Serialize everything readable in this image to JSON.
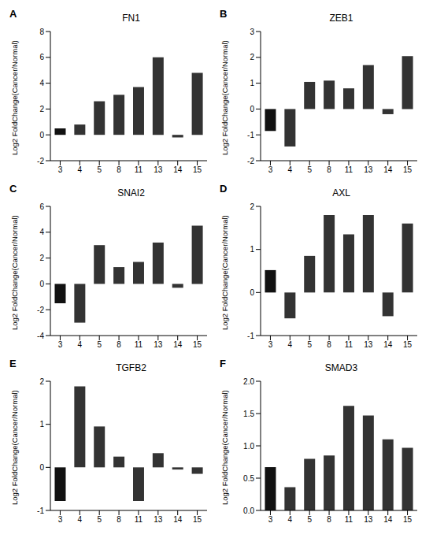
{
  "chart_data": [
    {
      "type": "bar",
      "panel_label": "A",
      "title": "FN1",
      "y_label": "Log2 FoldChange(Cancer/Normal)",
      "categories": [
        "3",
        "4",
        "5",
        "8",
        "11",
        "13",
        "14",
        "15"
      ],
      "values": [
        0.5,
        0.8,
        2.6,
        3.1,
        3.7,
        6.0,
        -0.2,
        4.8
      ],
      "colors": [
        "#111111",
        "#333333",
        "#333333",
        "#333333",
        "#333333",
        "#333333",
        "#333333",
        "#333333"
      ],
      "ylim": [
        -2,
        8
      ],
      "yticks": [
        -2,
        0,
        2,
        4,
        6,
        8
      ],
      "grid": false
    },
    {
      "type": "bar",
      "panel_label": "B",
      "title": "ZEB1",
      "y_label": "Log2 FoldChange(Cancer/Normal)",
      "categories": [
        "3",
        "4",
        "5",
        "8",
        "11",
        "13",
        "14",
        "15"
      ],
      "values": [
        -0.85,
        -1.45,
        1.05,
        1.1,
        0.8,
        1.7,
        -0.2,
        2.05
      ],
      "colors": [
        "#111111",
        "#333333",
        "#333333",
        "#333333",
        "#333333",
        "#333333",
        "#333333",
        "#333333"
      ],
      "ylim": [
        -2,
        3
      ],
      "yticks": [
        -2,
        -1,
        0,
        1,
        2,
        3
      ],
      "grid": false
    },
    {
      "type": "bar",
      "panel_label": "C",
      "title": "SNAI2",
      "y_label": "Log2 FoldChange(Cancer/Normal)",
      "categories": [
        "3",
        "4",
        "5",
        "8",
        "11",
        "13",
        "14",
        "15"
      ],
      "values": [
        -1.5,
        -3.0,
        3.0,
        1.3,
        1.7,
        3.2,
        -0.3,
        4.5
      ],
      "colors": [
        "#111111",
        "#333333",
        "#333333",
        "#333333",
        "#333333",
        "#333333",
        "#333333",
        "#333333"
      ],
      "ylim": [
        -4,
        6
      ],
      "yticks": [
        -4,
        -2,
        0,
        2,
        4,
        6
      ],
      "grid": false
    },
    {
      "type": "bar",
      "panel_label": "D",
      "title": "AXL",
      "y_label": "Log2 FoldChange(Cancer/Normal)",
      "categories": [
        "3",
        "4",
        "5",
        "8",
        "11",
        "13",
        "14",
        "15"
      ],
      "values": [
        0.52,
        -0.6,
        0.85,
        1.8,
        1.35,
        1.8,
        -0.55,
        1.6
      ],
      "colors": [
        "#111111",
        "#333333",
        "#333333",
        "#333333",
        "#333333",
        "#333333",
        "#333333",
        "#333333"
      ],
      "ylim": [
        -1,
        2
      ],
      "yticks": [
        -1,
        0,
        1,
        2
      ],
      "grid": false
    },
    {
      "type": "bar",
      "panel_label": "E",
      "title": "TGFB2",
      "y_label": "Log2 FoldChange(Cancer/Normal)",
      "categories": [
        "3",
        "4",
        "5",
        "8",
        "11",
        "13",
        "14",
        "15"
      ],
      "values": [
        -0.78,
        1.88,
        0.95,
        0.25,
        -0.78,
        0.33,
        -0.05,
        -0.15
      ],
      "colors": [
        "#111111",
        "#333333",
        "#333333",
        "#333333",
        "#333333",
        "#333333",
        "#333333",
        "#333333"
      ],
      "ylim": [
        -1,
        2
      ],
      "yticks": [
        -1,
        0,
        1,
        2
      ],
      "grid": false
    },
    {
      "type": "bar",
      "panel_label": "F",
      "title": "SMAD3",
      "y_label": "Log2 FoldChange(Cancer/Normal)",
      "categories": [
        "3",
        "4",
        "5",
        "8",
        "11",
        "13",
        "14",
        "15"
      ],
      "values": [
        0.67,
        0.36,
        0.8,
        0.85,
        1.62,
        1.47,
        1.1,
        0.97
      ],
      "colors": [
        "#111111",
        "#333333",
        "#333333",
        "#333333",
        "#333333",
        "#333333",
        "#333333",
        "#333333"
      ],
      "ylim": [
        0,
        2
      ],
      "yticks": [
        {
          "value": 0,
          "label": "0.0"
        },
        {
          "value": 0.5,
          "label": "0.5"
        },
        {
          "value": 1,
          "label": "1.0"
        },
        {
          "value": 1.5,
          "label": "1.5"
        },
        {
          "value": 2,
          "label": "2.0"
        }
      ],
      "grid": false
    }
  ]
}
